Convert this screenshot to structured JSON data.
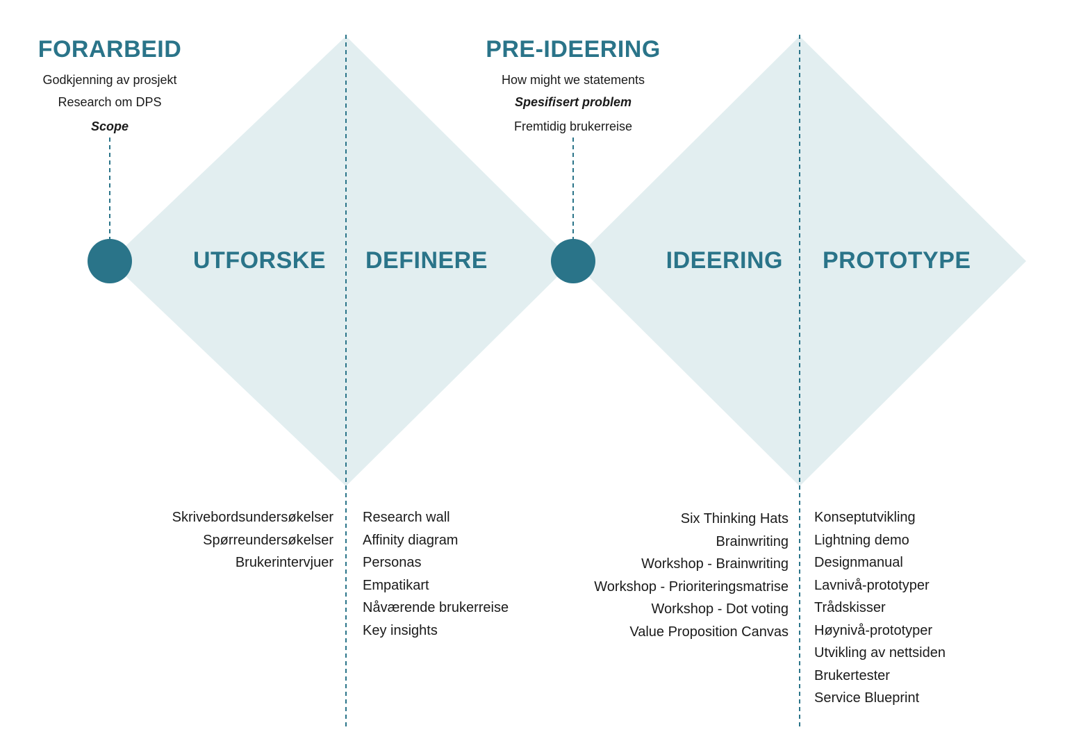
{
  "stages": {
    "forarbeid": {
      "title": "FORARBEID",
      "items": [
        "Godkjenning av prosjekt",
        "Research om DPS"
      ],
      "milestone": "Scope"
    },
    "preideering": {
      "title": "PRE-IDEERING",
      "items": [
        "How might we statements"
      ],
      "milestone": "Spesifisert problem",
      "after": "Fremtidig brukerreise"
    }
  },
  "phases": {
    "utforske": {
      "label": "UTFORSKE",
      "methods": [
        "Skrivebordsundersøkelser",
        "Spørreundersøkelser",
        "Brukerintervjuer"
      ]
    },
    "definere": {
      "label": "DEFINERE",
      "methods": [
        "Research wall",
        "Affinity diagram",
        "Personas",
        "Empatikart",
        "Nåværende brukerreise",
        "Key insights"
      ]
    },
    "ideering": {
      "label": "IDEERING",
      "methods": [
        "Six Thinking Hats",
        "Brainwriting",
        "Workshop - Brainwriting",
        "Workshop - Prioriteringsmatrise",
        "Workshop - Dot voting",
        "Value Proposition Canvas"
      ]
    },
    "prototype": {
      "label": "PROTOTYPE",
      "methods": [
        "Konseptutvikling",
        "Lightning demo",
        "Designmanual",
        "Lavnivå-prototyper",
        "Trådskisser",
        "Høynivå-prototyper",
        "Utvikling av nettsiden",
        "Brukertester",
        "Service Blueprint"
      ]
    }
  },
  "colors": {
    "accent": "#2a7489",
    "diamond": "#e2eef0",
    "node": "#2a7489"
  }
}
